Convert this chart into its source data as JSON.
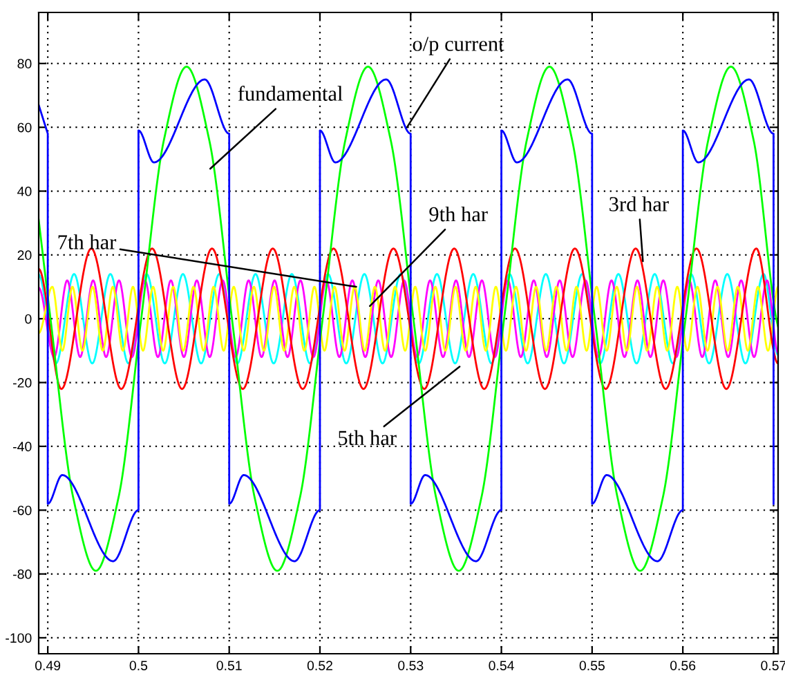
{
  "chart_data": {
    "type": "line",
    "xlim": [
      0.489,
      0.5705
    ],
    "ylim": [
      -105,
      96
    ],
    "xticks": [
      0.49,
      0.5,
      0.51,
      0.52,
      0.53,
      0.54,
      0.55,
      0.56,
      0.57
    ],
    "yticks": [
      -100,
      -80,
      -60,
      -40,
      -20,
      0,
      20,
      40,
      60,
      80
    ],
    "grid": true,
    "line_style": "solid",
    "series": [
      {
        "color": "#00ffff",
        "x": [
          0.489,
          0.4909,
          0.4929,
          0.4949,
          0.4969,
          0.4989,
          0.5009,
          0.5029,
          0.5049,
          0.5069,
          0.5089,
          0.5109,
          0.5129,
          0.5149,
          0.5169,
          0.5189,
          0.5209,
          0.5229,
          0.5249,
          0.5269,
          0.5289,
          0.5309,
          0.5329,
          0.5349,
          0.5369,
          0.5389,
          0.5409,
          0.5429,
          0.5449,
          0.5469,
          0.5489,
          0.5509,
          0.5529,
          0.5549,
          0.5569,
          0.5589,
          0.5609,
          0.5629,
          0.5649,
          0.5669,
          0.5689,
          0.5705
        ],
        "values": [
          13.8,
          -14,
          14,
          -14,
          14,
          -14,
          14,
          -14,
          14,
          -14,
          14,
          -14,
          14,
          -14,
          14,
          -14,
          14,
          -14,
          14,
          -14,
          14,
          -14,
          14,
          -14,
          14,
          -14,
          14,
          -14,
          14,
          -14,
          14,
          -14,
          14,
          -14,
          14,
          -14,
          14,
          -14,
          14,
          -14,
          14,
          -11.3
        ]
      },
      {
        "color": "#ff00ff",
        "x": [
          0.489,
          0.49071,
          0.49214,
          0.49357,
          0.495,
          0.49643,
          0.49785,
          0.49928,
          0.50071,
          0.50214,
          0.50357,
          0.505,
          0.50643,
          0.50785,
          0.50928,
          0.51071,
          0.51214,
          0.51357,
          0.515,
          0.51643,
          0.51785,
          0.51928,
          0.52071,
          0.52214,
          0.52357,
          0.525,
          0.52643,
          0.52785,
          0.52928,
          0.53071,
          0.53214,
          0.53357,
          0.535,
          0.53643,
          0.53785,
          0.53928,
          0.54071,
          0.54214,
          0.54357,
          0.545,
          0.54643,
          0.54785,
          0.54928,
          0.55071,
          0.55214,
          0.55357,
          0.555,
          0.55643,
          0.55785,
          0.55928,
          0.56071,
          0.56214,
          0.56357,
          0.565,
          0.56643,
          0.56785,
          0.56928,
          0.5705
        ],
        "values": [
          9.7,
          -12,
          12,
          -12,
          12,
          -12,
          12,
          -12,
          12,
          -12,
          12,
          -12,
          12,
          -12,
          12,
          -12,
          12,
          -12,
          12,
          -12,
          12,
          -12,
          12,
          -12,
          12,
          -12,
          12,
          -12,
          12,
          -12,
          12,
          -12,
          12,
          -12,
          12,
          -12,
          12,
          -12,
          12,
          -12,
          12,
          -12,
          12,
          -12,
          12,
          -12,
          12,
          -12,
          12,
          -12,
          12,
          -12,
          12,
          -12,
          12,
          -12,
          12,
          -10.7
        ]
      },
      {
        "color": "#ffff00",
        "x": [
          0.489,
          0.4905,
          0.49161,
          0.49272,
          0.49383,
          0.49494,
          0.49606,
          0.49717,
          0.49828,
          0.49939,
          0.5005,
          0.50161,
          0.50272,
          0.50383,
          0.50494,
          0.50606,
          0.50717,
          0.50828,
          0.50939,
          0.5105,
          0.51161,
          0.51272,
          0.51383,
          0.51494,
          0.51606,
          0.51717,
          0.51828,
          0.51939,
          0.5205,
          0.52161,
          0.52272,
          0.52383,
          0.52494,
          0.52606,
          0.52717,
          0.52828,
          0.52939,
          0.5305,
          0.53161,
          0.53272,
          0.53383,
          0.53494,
          0.53606,
          0.53717,
          0.53828,
          0.53939,
          0.5405,
          0.54161,
          0.54272,
          0.54383,
          0.54494,
          0.54606,
          0.54717,
          0.54828,
          0.54939,
          0.5505,
          0.55161,
          0.55272,
          0.55383,
          0.55494,
          0.55606,
          0.55717,
          0.55828,
          0.55939,
          0.5605,
          0.56161,
          0.56272,
          0.56383,
          0.56494,
          0.56606,
          0.56717,
          0.56828,
          0.56939,
          0.5705
        ],
        "values": [
          -4.5,
          10,
          -10,
          10,
          -10,
          10,
          -10,
          10,
          -10,
          10,
          -10,
          10,
          -10,
          10,
          -10,
          10,
          -10,
          10,
          -10,
          10,
          -10,
          10,
          -10,
          10,
          -10,
          10,
          -10,
          10,
          -10,
          10,
          -10,
          10,
          -10,
          10,
          -10,
          10,
          -10,
          10,
          -10,
          10,
          -10,
          10,
          -10,
          10,
          -10,
          10,
          -10,
          10,
          -10,
          10,
          -10,
          10,
          -10,
          10,
          -10,
          10,
          -10,
          10,
          -10,
          10,
          -10,
          10,
          -10,
          10,
          -10,
          10,
          -10,
          10,
          -10,
          10,
          -10,
          10,
          -10,
          10
        ]
      },
      {
        "color": "#ff0000",
        "x": [
          0.489,
          0.4915,
          0.4948,
          0.4981,
          0.5015,
          0.5048,
          0.5081,
          0.5115,
          0.5148,
          0.5181,
          0.5215,
          0.5248,
          0.5281,
          0.5315,
          0.5348,
          0.5381,
          0.5415,
          0.5448,
          0.5481,
          0.5515,
          0.5548,
          0.5581,
          0.5615,
          0.5648,
          0.5681,
          0.5705
        ],
        "values": [
          15.6,
          -22,
          22,
          -22,
          22,
          -22,
          22,
          -22,
          22,
          -22,
          22,
          -22,
          22,
          -22,
          22,
          -22,
          22,
          -22,
          22,
          -22,
          22,
          -22,
          22,
          -22,
          22,
          -14
        ]
      },
      {
        "color": "#00ff00",
        "x": [
          0.489,
          0.4903,
          0.4928,
          0.4953,
          0.4978,
          0.5003,
          0.5028,
          0.5053,
          0.5078,
          0.5103,
          0.5128,
          0.5153,
          0.5178,
          0.5203,
          0.5228,
          0.5253,
          0.5278,
          0.5303,
          0.5328,
          0.5353,
          0.5378,
          0.5403,
          0.5428,
          0.5453,
          0.5478,
          0.5503,
          0.5528,
          0.5553,
          0.5578,
          0.5603,
          0.5628,
          0.5653,
          0.5678,
          0.5703,
          0.5705
        ],
        "values": [
          31,
          0,
          -56,
          -79,
          -56,
          0,
          56,
          79,
          56,
          0,
          -56,
          -79,
          -56,
          0,
          56,
          79,
          56,
          0,
          -56,
          -79,
          -56,
          0,
          56,
          79,
          56,
          0,
          -56,
          -79,
          -56,
          0,
          56,
          79,
          56,
          0,
          -2.5
        ]
      },
      {
        "color": "#0000ff",
        "x": [
          0.489,
          0.49,
          0.49,
          0.4916,
          0.4972,
          0.5,
          0.5,
          0.5017,
          0.5073,
          0.51,
          0.51,
          0.5116,
          0.5172,
          0.52,
          0.52,
          0.5217,
          0.5273,
          0.53,
          0.53,
          0.5316,
          0.5372,
          0.54,
          0.54,
          0.5417,
          0.5473,
          0.55,
          0.55,
          0.5516,
          0.5572,
          0.56,
          0.56,
          0.5617,
          0.5673,
          0.57,
          0.57
        ],
        "values": [
          67,
          58,
          -58,
          -49,
          -76,
          -60,
          59,
          49,
          75,
          58,
          -58,
          -49,
          -76,
          -60,
          59,
          49,
          75,
          58,
          -58,
          -49,
          -76,
          -60,
          59,
          49,
          75,
          58,
          -58,
          -49,
          -76,
          -60,
          59,
          49,
          75,
          58,
          -58
        ]
      }
    ],
    "annotations": [
      {
        "text": "o/p current",
        "x": 0.5296,
        "y": 60
      },
      {
        "text": "fundamental",
        "x": 0.5079,
        "y": 47
      },
      {
        "text": "7th har",
        "x": 0.524,
        "y": 10
      },
      {
        "text": "9th har",
        "x": 0.5255,
        "y": 4
      },
      {
        "text": "3rd har",
        "x": 0.5556,
        "y": 18
      },
      {
        "text": "5th har",
        "x": 0.5354,
        "y": -15
      }
    ]
  }
}
